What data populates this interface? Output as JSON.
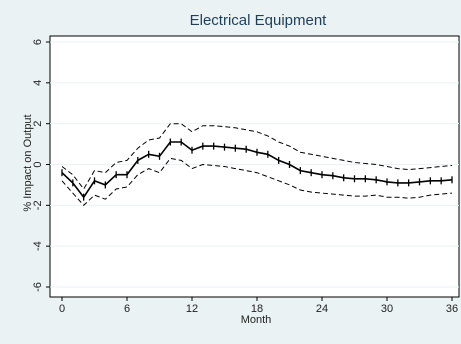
{
  "chart_data": {
    "type": "line",
    "title": "Electrical Equipment",
    "xlabel": "Month",
    "ylabel": "% Impact on Output",
    "xlim": [
      0,
      36
    ],
    "ylim": [
      -6,
      6
    ],
    "x_ticks": [
      0,
      6,
      12,
      18,
      24,
      30,
      36
    ],
    "y_ticks": [
      6,
      4,
      2,
      0,
      -2,
      -4,
      -6
    ],
    "y_tick_labels": [
      "6",
      "4",
      "2",
      "0",
      "-2",
      "-4",
      "-6"
    ],
    "grid": "horizontal",
    "colors": {
      "background": "#eaf2f3",
      "plot_area": "#ffffff",
      "series": "#000000",
      "grid": "#eaf2f3",
      "title": "#1e3f5a"
    },
    "x": [
      0,
      1,
      2,
      3,
      4,
      5,
      6,
      7,
      8,
      9,
      10,
      11,
      12,
      13,
      14,
      15,
      16,
      17,
      18,
      19,
      20,
      21,
      22,
      23,
      24,
      25,
      26,
      27,
      28,
      29,
      30,
      31,
      32,
      33,
      34,
      35,
      36
    ],
    "series": [
      {
        "style": "solid-with-markers",
        "values": [
          -0.4,
          -0.9,
          -1.6,
          -0.8,
          -1.0,
          -0.5,
          -0.5,
          0.2,
          0.5,
          0.4,
          1.1,
          1.1,
          0.7,
          0.9,
          0.9,
          0.85,
          0.8,
          0.75,
          0.6,
          0.5,
          0.2,
          0.0,
          -0.3,
          -0.4,
          -0.5,
          -0.55,
          -0.65,
          -0.7,
          -0.7,
          -0.75,
          -0.85,
          -0.9,
          -0.9,
          -0.85,
          -0.8,
          -0.8,
          -0.75
        ]
      },
      {
        "style": "dashed-upper",
        "values": [
          -0.1,
          -0.5,
          -1.2,
          -0.3,
          -0.4,
          0.1,
          0.2,
          0.8,
          1.2,
          1.3,
          2.0,
          2.0,
          1.6,
          1.9,
          1.9,
          1.85,
          1.8,
          1.7,
          1.6,
          1.4,
          1.1,
          0.9,
          0.6,
          0.5,
          0.4,
          0.3,
          0.2,
          0.1,
          0.05,
          0.0,
          -0.1,
          -0.2,
          -0.25,
          -0.2,
          -0.15,
          -0.1,
          -0.05
        ]
      },
      {
        "style": "dashed-lower",
        "values": [
          -0.8,
          -1.4,
          -2.0,
          -1.5,
          -1.7,
          -1.2,
          -1.1,
          -0.5,
          -0.2,
          -0.4,
          0.3,
          0.2,
          -0.2,
          0.0,
          -0.05,
          -0.1,
          -0.2,
          -0.3,
          -0.4,
          -0.6,
          -0.8,
          -1.0,
          -1.25,
          -1.35,
          -1.4,
          -1.45,
          -1.5,
          -1.55,
          -1.55,
          -1.5,
          -1.6,
          -1.6,
          -1.65,
          -1.6,
          -1.5,
          -1.45,
          -1.4
        ]
      }
    ]
  }
}
